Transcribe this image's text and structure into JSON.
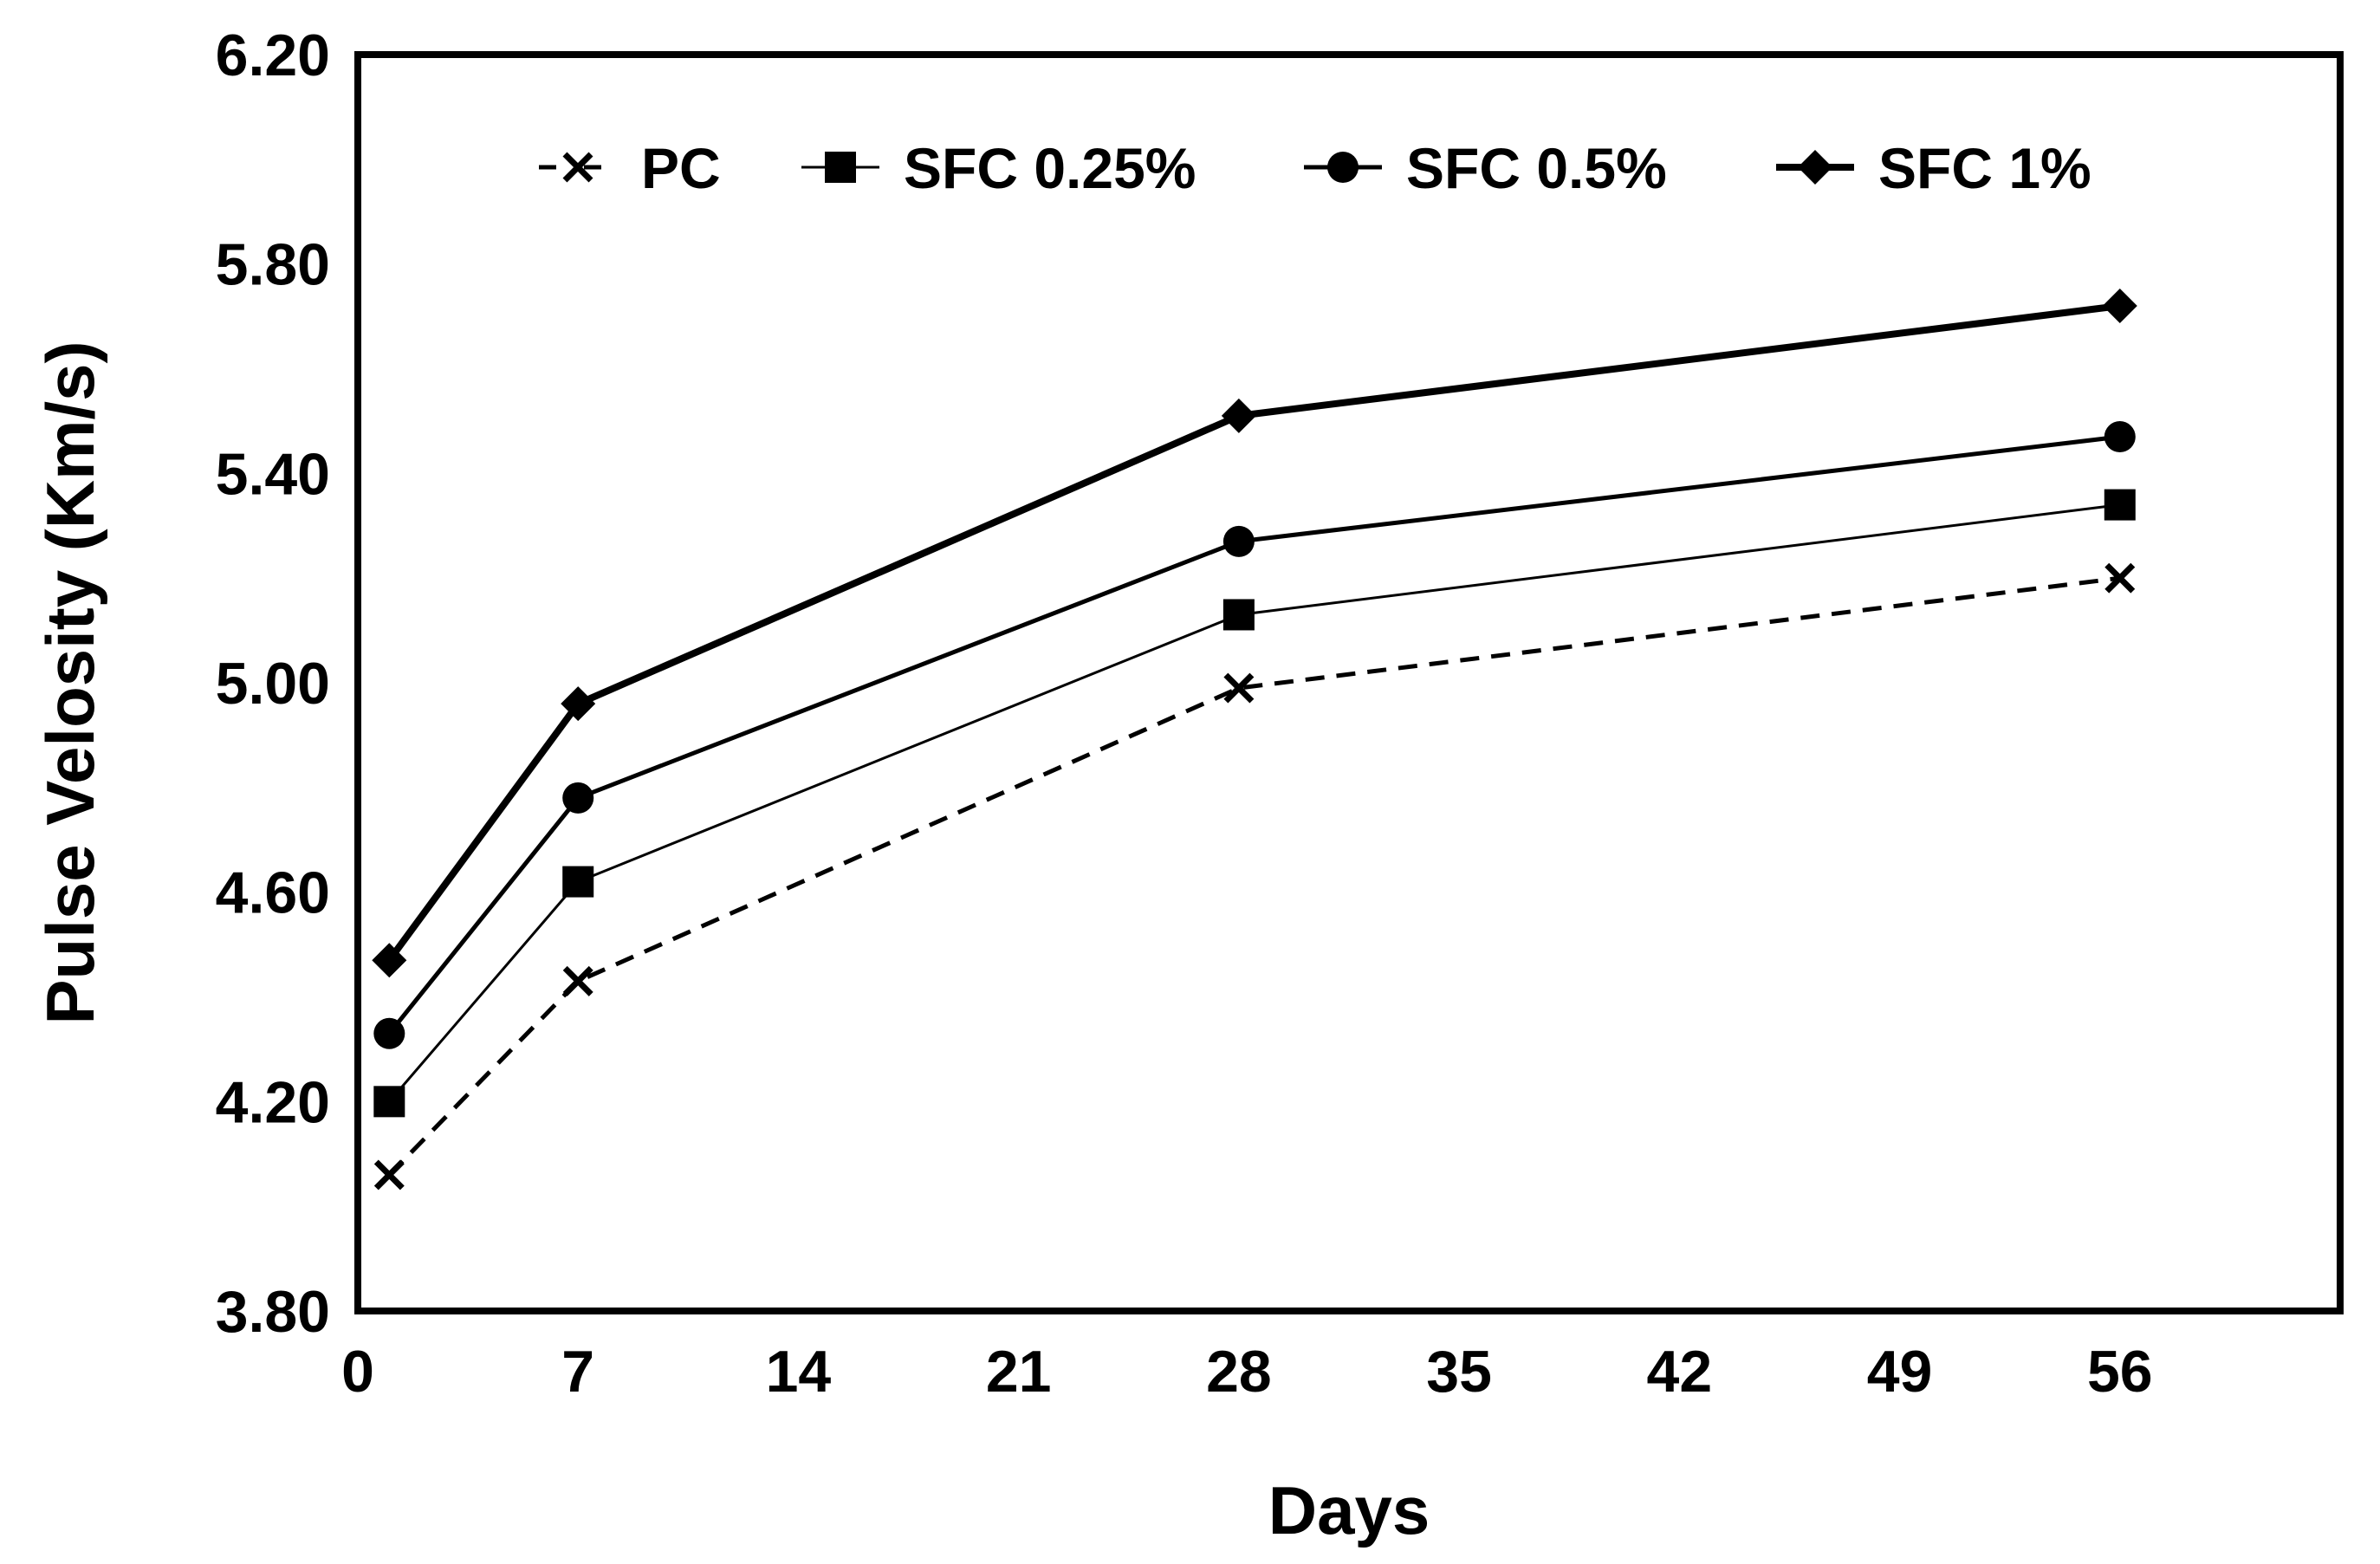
{
  "chart_data": {
    "type": "line",
    "title": "",
    "xlabel": "Days",
    "ylabel": "Pulse Velosity (Km/s)",
    "xlim": [
      0,
      63
    ],
    "ylim": [
      3.8,
      6.2
    ],
    "xticks": [
      0,
      7,
      14,
      21,
      28,
      35,
      42,
      49,
      56
    ],
    "xtick_labels": [
      "0",
      "7",
      "14",
      "21",
      "28",
      "35",
      "42",
      "49",
      "56"
    ],
    "yticks": [
      3.8,
      4.2,
      4.6,
      5.0,
      5.4,
      5.8,
      6.2
    ],
    "ytick_labels": [
      "3.80",
      "4.20",
      "4.60",
      "5.00",
      "5.40",
      "5.80",
      "6.20"
    ],
    "grid": false,
    "legend_position": "top",
    "x": [
      1,
      7,
      28,
      56
    ],
    "series": [
      {
        "name": "PC",
        "values": [
          4.06,
          4.43,
          4.99,
          5.2
        ],
        "marker": "x",
        "line": "dashed"
      },
      {
        "name": "SFC 0.25%",
        "values": [
          4.2,
          4.62,
          5.13,
          5.34
        ],
        "marker": "square",
        "line": "thin"
      },
      {
        "name": "SFC 0.5%",
        "values": [
          4.33,
          4.78,
          5.27,
          5.47
        ],
        "marker": "circle",
        "line": "medium"
      },
      {
        "name": "SFC 1%",
        "values": [
          4.47,
          4.96,
          5.51,
          5.72
        ],
        "marker": "diamond",
        "line": "thick"
      }
    ],
    "colors": {
      "line": "#000000",
      "background": "#ffffff"
    }
  }
}
